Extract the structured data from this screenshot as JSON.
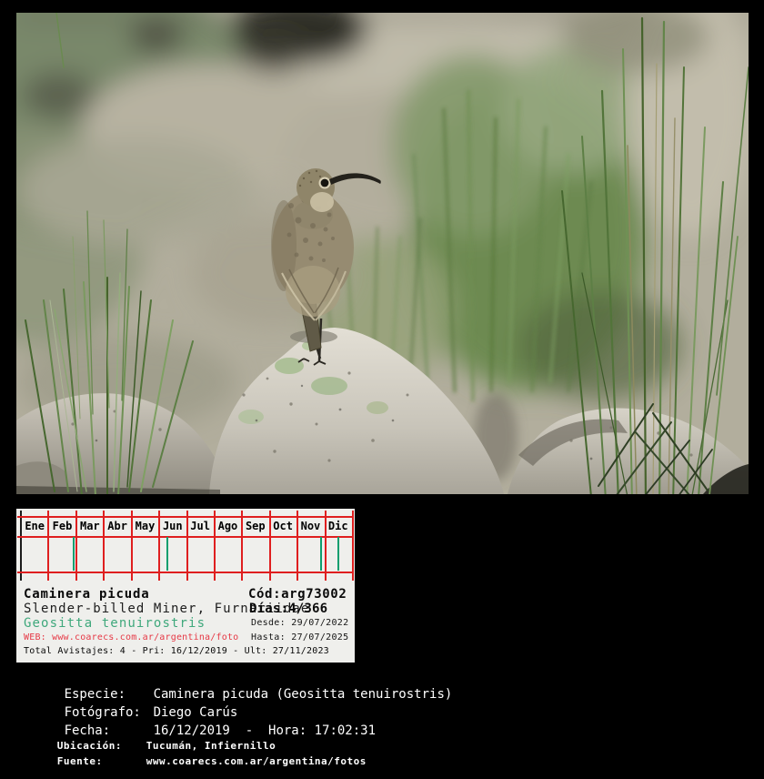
{
  "photo": {
    "alt": "Caminera picuda (Slender-billed Miner) perched on a granite rock among green tussock grasses"
  },
  "card": {
    "months": [
      "Ene",
      "Feb",
      "Mar",
      "Abr",
      "May",
      "Jun",
      "Jul",
      "Ago",
      "Sep",
      "Oct",
      "Nov",
      "Dic"
    ],
    "sightings": [
      {
        "month_index": 1,
        "fraction": 0.91
      },
      {
        "month_index": 5,
        "fraction": 0.29
      },
      {
        "month_index": 10,
        "fraction": 0.85
      },
      {
        "month_index": 11,
        "fraction": 0.47
      }
    ],
    "common_name": "Caminera picuda",
    "code": "Cód:arg73002",
    "english_family": "Slender-billed Miner, Furnariidae",
    "days": "Días:4/366",
    "scientific_name": "Geositta tenuirostris",
    "web": "WEB: www.coarecs.com.ar/argentina/foto",
    "desde": "Desde: 29/07/2022",
    "hasta": "Hasta: 27/07/2025",
    "totals": "Total Avistajes: 4 - Pri: 16/12/2019 - Ult: 27/11/2023"
  },
  "details": {
    "rows": [
      {
        "label": "Especie:",
        "value": "Caminera picuda (Geositta tenuirostris)"
      },
      {
        "label": "Fotógrafo:",
        "value": "Diego Carús"
      },
      {
        "label": "Fecha:",
        "value": "16/12/2019  -  Hora: 17:02:31"
      },
      {
        "label": "Ubicación:",
        "value": "Tucumán, Infiernillo"
      },
      {
        "label": "Fuente:",
        "value": "www.coarecs.com.ar/argentina/fotos"
      }
    ]
  },
  "colors": {
    "table-red": "#df1f1f",
    "table-left-border": "#1c1c1c",
    "tick-green": "#0e9e6e",
    "scientific-green": "#3fa87c",
    "web-red": "#e63946",
    "card-bg": "#efefec",
    "detail-text": "#ffffff"
  }
}
